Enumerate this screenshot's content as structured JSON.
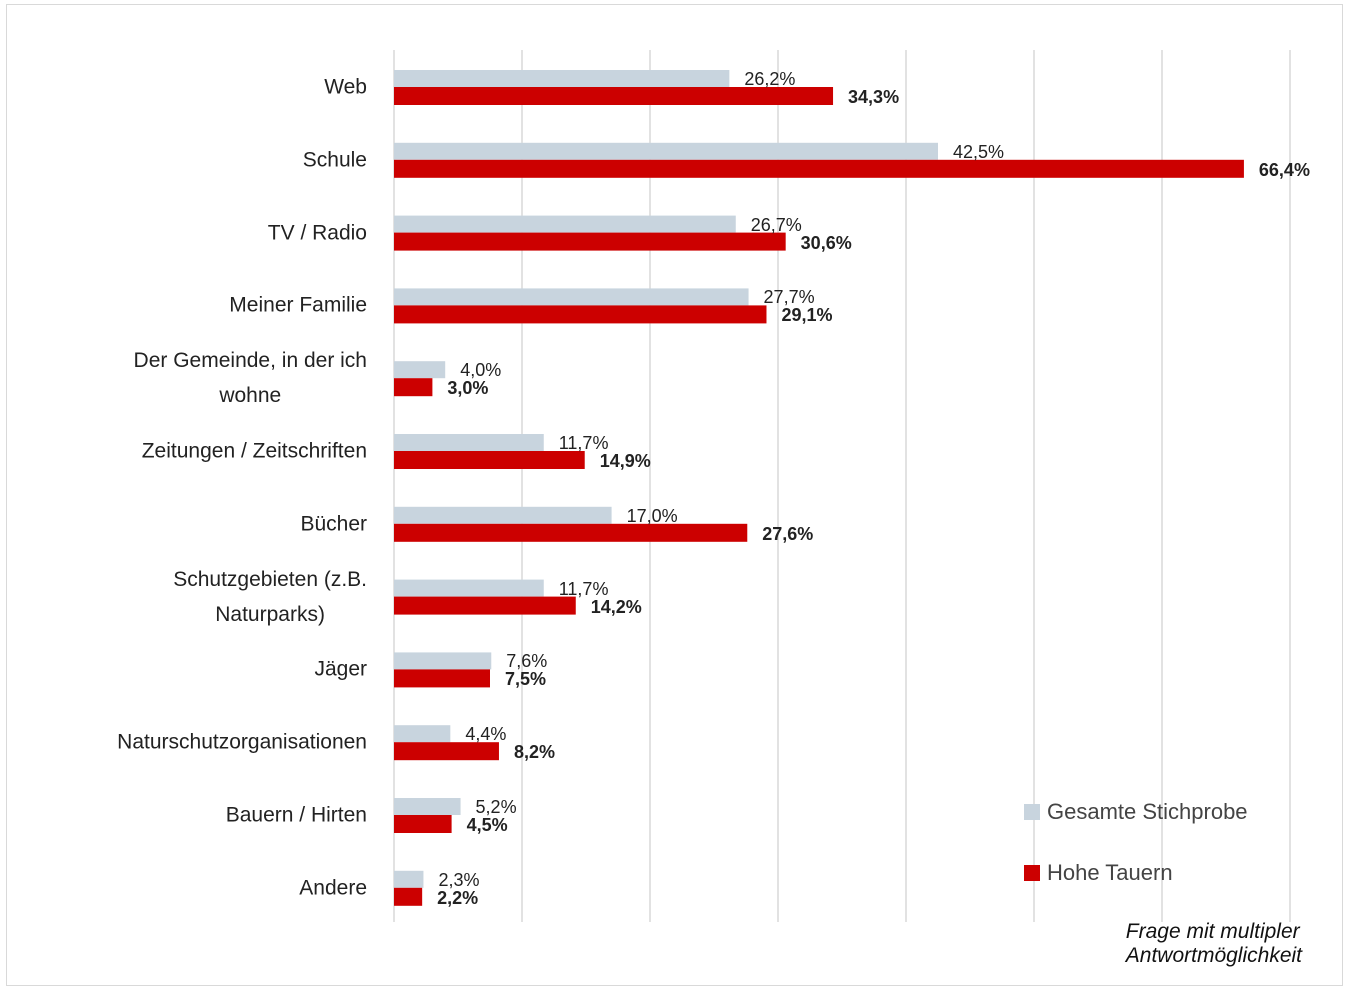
{
  "chart_data": {
    "type": "barh",
    "categories": [
      "Web",
      "Schule",
      "TV / Radio",
      "Meiner Familie",
      "Der Gemeinde, in der ich\nwohne",
      "Zeitungen / Zeitschriften",
      "Bücher",
      "Schutzgebieten (z.B.\nNaturparks)",
      "Jäger",
      "Naturschutzorganisationen",
      "Bauern / Hirten",
      "Andere"
    ],
    "series": [
      {
        "name": "Gesamte Stichprobe",
        "color": "#c8d4de",
        "values": [
          26.2,
          42.5,
          26.7,
          27.7,
          4.0,
          11.7,
          17.0,
          11.7,
          7.6,
          4.4,
          5.2,
          2.3
        ],
        "value_labels": [
          "26,2%",
          "42,5%",
          "26,7%",
          "27,7%",
          "4,0%",
          "11,7%",
          "17,0%",
          "11,7%",
          "7,6%",
          "4,4%",
          "5,2%",
          "2,3%"
        ]
      },
      {
        "name": "Hohe Tauern",
        "color": "#cc0000",
        "values": [
          34.3,
          66.4,
          30.6,
          29.1,
          3.0,
          14.9,
          27.6,
          14.2,
          7.5,
          8.2,
          4.5,
          2.2
        ],
        "value_labels": [
          "34,3%",
          "66,4%",
          "30,6%",
          "29,1%",
          "3,0%",
          "14,9%",
          "27,6%",
          "14,2%",
          "7,5%",
          "8,2%",
          "4,5%",
          "2,2%"
        ]
      }
    ],
    "xlim": [
      0,
      70
    ],
    "xticks": [
      0,
      10,
      20,
      30,
      40,
      50,
      60,
      70
    ],
    "grid": true,
    "legend": "lower right",
    "annotation": "Frage mit multipler Antwortmöglichkeit"
  }
}
